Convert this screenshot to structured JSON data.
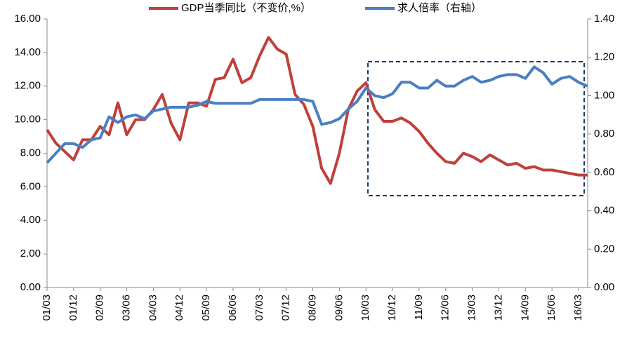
{
  "chart_data": {
    "type": "line",
    "categories": [
      "01/03",
      null,
      null,
      "01/12",
      null,
      null,
      "02/09",
      null,
      null,
      "03/06",
      null,
      null,
      "04/03",
      null,
      null,
      "04/12",
      null,
      null,
      "05/09",
      null,
      null,
      "06/06",
      null,
      null,
      "07/03",
      null,
      null,
      "07/12",
      null,
      null,
      "08/09",
      null,
      null,
      "09/06",
      null,
      null,
      "10/03",
      null,
      null,
      "10/12",
      null,
      null,
      "11/09",
      null,
      null,
      "12/06",
      null,
      null,
      "13/03",
      null,
      null,
      "13/12",
      null,
      null,
      "14/09",
      null,
      null,
      "15/06",
      null,
      null,
      "16/03",
      null
    ],
    "series": [
      {
        "name": "GDP当季同比（不变价,%）",
        "color": "#c0403a",
        "values": [
          9.4,
          8.6,
          8.1,
          7.6,
          8.8,
          8.8,
          9.6,
          9.1,
          11.0,
          9.1,
          10.0,
          10.0,
          10.6,
          11.5,
          9.8,
          8.8,
          11.0,
          11.0,
          10.8,
          12.4,
          12.5,
          13.6,
          12.2,
          12.5,
          13.8,
          14.9,
          14.2,
          13.9,
          11.5,
          10.9,
          9.6,
          7.1,
          6.2,
          8.0,
          10.6,
          11.7,
          12.2,
          10.6,
          9.9,
          9.9,
          10.1,
          9.8,
          9.3,
          8.6,
          8.0,
          7.5,
          7.4,
          8.0,
          7.8,
          7.5,
          7.9,
          7.6,
          7.3,
          7.4,
          7.1,
          7.2,
          7.0,
          7.0,
          6.9,
          6.8,
          6.7,
          6.7
        ]
      },
      {
        "name": "求人倍率（右轴）",
        "color": "#4a7fc1",
        "axis": "y2",
        "values": [
          0.65,
          0.7,
          0.75,
          0.75,
          0.73,
          0.77,
          0.78,
          0.89,
          0.86,
          0.89,
          0.9,
          0.88,
          0.92,
          0.93,
          0.94,
          0.94,
          0.94,
          0.95,
          0.97,
          0.96,
          0.96,
          0.96,
          0.96,
          0.96,
          0.98,
          0.98,
          0.98,
          0.98,
          0.98,
          0.98,
          0.97,
          0.85,
          0.86,
          0.88,
          0.93,
          0.97,
          1.04,
          1.0,
          0.99,
          1.01,
          1.07,
          1.07,
          1.04,
          1.04,
          1.08,
          1.05,
          1.05,
          1.08,
          1.1,
          1.07,
          1.08,
          1.1,
          1.11,
          1.11,
          1.09,
          1.15,
          1.12,
          1.06,
          1.09,
          1.1,
          1.07,
          1.05
        ]
      }
    ],
    "ylim": [
      0,
      16
    ],
    "yticks": [
      {
        "value": 0,
        "label": "0.00"
      },
      {
        "value": 2,
        "label": "2.00"
      },
      {
        "value": 4,
        "label": "4.00"
      },
      {
        "value": 6,
        "label": "6.00"
      },
      {
        "value": 8,
        "label": "8.00"
      },
      {
        "value": 10,
        "label": "10.00"
      },
      {
        "value": 12,
        "label": "12.00"
      },
      {
        "value": 14,
        "label": "14.00"
      },
      {
        "value": 16,
        "label": "16.00"
      }
    ],
    "y2lim": [
      0,
      1.4
    ],
    "y2ticks": [
      {
        "value": 0,
        "label": "0.00"
      },
      {
        "value": 0.2,
        "label": "0.20"
      },
      {
        "value": 0.4,
        "label": "0.40"
      },
      {
        "value": 0.6,
        "label": "0.60"
      },
      {
        "value": 0.8,
        "label": "0.80"
      },
      {
        "value": 1.0,
        "label": "1.00"
      },
      {
        "value": 1.2,
        "label": "1.20"
      },
      {
        "value": 1.4,
        "label": "1.40"
      }
    ],
    "legend": "top"
  }
}
